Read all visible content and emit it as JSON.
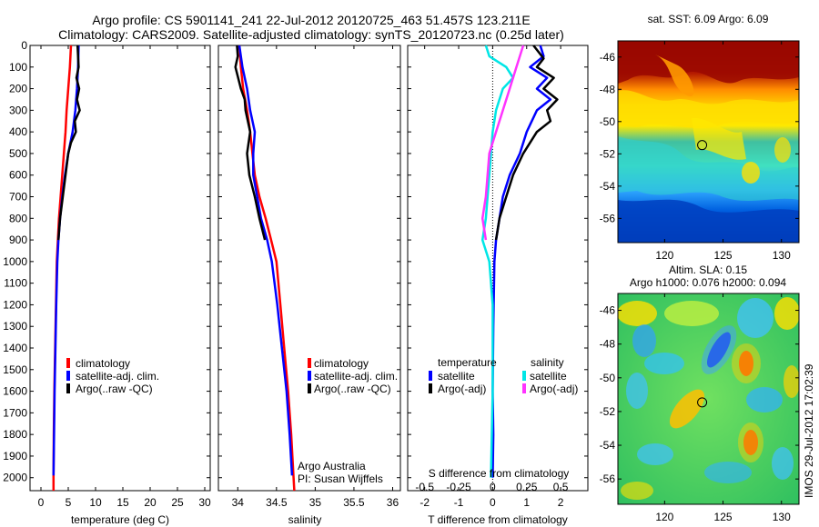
{
  "header": {
    "title_line1": "Argo profile: CS 5901141_241 22-Jul-2012 20120725_463 51.457S 123.211E",
    "title_line2": "Climatology: CARS2009. Satellite-adjusted climatology: synTS_20120723.nc (0.25d later)"
  },
  "colors": {
    "climatology": "#ff0000",
    "satellite": "#0000ff",
    "argo": "#000000",
    "sal_satellite": "#00e6e6",
    "sal_argo": "#ff33ff"
  },
  "depth_axis": {
    "ticks": [
      0,
      100,
      200,
      300,
      400,
      500,
      600,
      700,
      800,
      900,
      1000,
      1100,
      1200,
      1300,
      1400,
      1500,
      1600,
      1700,
      1800,
      1900,
      2000
    ],
    "range": [
      0,
      2060
    ]
  },
  "chart_data": [
    {
      "id": "temperature",
      "type": "line",
      "xlabel": "temperature (deg C)",
      "xlim": [
        -2,
        31
      ],
      "xticks": [
        0,
        5,
        10,
        15,
        20,
        25,
        30
      ],
      "legend": [
        "climatology",
        "satellite-adj. clim.",
        "Argo(..raw -QC)"
      ],
      "series": [
        {
          "name": "climatology",
          "color": "#ff0000",
          "points": [
            [
              5.5,
              0
            ],
            [
              5.3,
              100
            ],
            [
              5.0,
              200
            ],
            [
              4.7,
              300
            ],
            [
              4.5,
              400
            ],
            [
              4.2,
              500
            ],
            [
              3.9,
              600
            ],
            [
              3.6,
              700
            ],
            [
              3.3,
              800
            ],
            [
              3.1,
              900
            ],
            [
              2.9,
              1000
            ],
            [
              2.75,
              1200
            ],
            [
              2.6,
              1400
            ],
            [
              2.45,
              1600
            ],
            [
              2.35,
              1800
            ],
            [
              2.3,
              2000
            ],
            [
              2.3,
              2060
            ]
          ]
        },
        {
          "name": "satellite-adj. clim.",
          "color": "#0000ff",
          "points": [
            [
              6.9,
              0
            ],
            [
              6.8,
              100
            ],
            [
              6.6,
              200
            ],
            [
              6.3,
              300
            ],
            [
              5.8,
              400
            ],
            [
              5.0,
              500
            ],
            [
              4.4,
              600
            ],
            [
              3.9,
              700
            ],
            [
              3.5,
              800
            ],
            [
              3.2,
              900
            ],
            [
              3.0,
              1000
            ],
            [
              2.8,
              1200
            ],
            [
              2.65,
              1400
            ],
            [
              2.5,
              1600
            ],
            [
              2.4,
              1800
            ],
            [
              2.3,
              1990
            ]
          ]
        },
        {
          "name": "Argo(..raw -QC)",
          "color": "#000000",
          "points": [
            [
              6.7,
              0
            ],
            [
              6.9,
              100
            ],
            [
              6.5,
              150
            ],
            [
              7.0,
              200
            ],
            [
              6.6,
              250
            ],
            [
              7.1,
              300
            ],
            [
              6.2,
              350
            ],
            [
              6.4,
              400
            ],
            [
              5.5,
              450
            ],
            [
              5.0,
              500
            ],
            [
              4.5,
              600
            ],
            [
              4.0,
              700
            ],
            [
              3.5,
              800
            ],
            [
              3.2,
              900
            ]
          ]
        }
      ]
    },
    {
      "id": "salinity",
      "type": "line",
      "xlabel": "salinity",
      "xlim": [
        33.75,
        36.1
      ],
      "xticks": [
        34,
        34.5,
        35,
        35.5,
        36
      ],
      "legend": [
        "climatology",
        "satellite-adj. clim.",
        "Argo(..raw -QC)"
      ],
      "annotation": [
        "Argo Australia",
        "PI: Susan Wijffels"
      ],
      "series": [
        {
          "name": "climatology",
          "color": "#ff0000",
          "points": [
            [
              34.02,
              0
            ],
            [
              34.04,
              100
            ],
            [
              34.07,
              200
            ],
            [
              34.12,
              300
            ],
            [
              34.16,
              400
            ],
            [
              34.19,
              500
            ],
            [
              34.22,
              600
            ],
            [
              34.28,
              700
            ],
            [
              34.36,
              800
            ],
            [
              34.43,
              900
            ],
            [
              34.5,
              1000
            ],
            [
              34.55,
              1200
            ],
            [
              34.6,
              1400
            ],
            [
              34.65,
              1600
            ],
            [
              34.69,
              1800
            ],
            [
              34.72,
              2000
            ],
            [
              34.73,
              2060
            ]
          ]
        },
        {
          "name": "satellite-adj. clim.",
          "color": "#0000ff",
          "points": [
            [
              34.02,
              0
            ],
            [
              34.06,
              100
            ],
            [
              34.12,
              200
            ],
            [
              34.16,
              300
            ],
            [
              34.22,
              400
            ],
            [
              34.2,
              500
            ],
            [
              34.2,
              600
            ],
            [
              34.25,
              700
            ],
            [
              34.3,
              800
            ],
            [
              34.38,
              900
            ],
            [
              34.44,
              1000
            ],
            [
              34.51,
              1200
            ],
            [
              34.57,
              1400
            ],
            [
              34.63,
              1600
            ],
            [
              34.67,
              1800
            ],
            [
              34.7,
              1990
            ]
          ]
        },
        {
          "name": "Argo(..raw -QC)",
          "color": "#000000",
          "points": [
            [
              33.99,
              0
            ],
            [
              34.0,
              50
            ],
            [
              33.97,
              100
            ],
            [
              34.04,
              200
            ],
            [
              34.09,
              250
            ],
            [
              34.1,
              300
            ],
            [
              34.16,
              400
            ],
            [
              34.12,
              500
            ],
            [
              34.15,
              600
            ],
            [
              34.22,
              700
            ],
            [
              34.28,
              800
            ],
            [
              34.35,
              900
            ]
          ]
        }
      ]
    },
    {
      "id": "difference",
      "type": "line",
      "xlabel": "T difference from climatology",
      "top_label": "S difference from climatology",
      "xlim": [
        -2.5,
        2.8
      ],
      "xticks": [
        -2,
        -1,
        0,
        1,
        2
      ],
      "top_ticks": [
        "-0.5",
        "-0.25",
        "0",
        "0.25",
        "0.5"
      ],
      "top_tick_positions_T": [
        -2,
        -1,
        0,
        1,
        2
      ],
      "legend_temperature_title": "temperature",
      "legend_salinity_title": "salinity",
      "legend": [
        "satellite",
        "Argo(-adj)",
        "satellite",
        "Argo(-adj)"
      ],
      "series": [
        {
          "name": "temperature satellite",
          "color": "#0000ff",
          "points": [
            [
              1.4,
              0
            ],
            [
              1.5,
              50
            ],
            [
              1.1,
              100
            ],
            [
              1.6,
              150
            ],
            [
              1.3,
              200
            ],
            [
              1.7,
              250
            ],
            [
              1.3,
              300
            ],
            [
              1.0,
              400
            ],
            [
              0.8,
              500
            ],
            [
              0.5,
              600
            ],
            [
              0.3,
              700
            ],
            [
              0.2,
              800
            ],
            [
              0.1,
              900
            ],
            [
              0.05,
              1000
            ],
            [
              0.02,
              1300
            ],
            [
              0.0,
              1600
            ],
            [
              0.02,
              1800
            ],
            [
              0.0,
              2000
            ]
          ]
        },
        {
          "name": "temperature Argo(-adj)",
          "color": "#000000",
          "points": [
            [
              1.2,
              0
            ],
            [
              1.5,
              60
            ],
            [
              1.3,
              100
            ],
            [
              1.8,
              150
            ],
            [
              1.5,
              200
            ],
            [
              1.9,
              250
            ],
            [
              1.6,
              300
            ],
            [
              1.7,
              350
            ],
            [
              1.3,
              400
            ],
            [
              0.9,
              500
            ],
            [
              0.6,
              600
            ],
            [
              0.4,
              700
            ],
            [
              0.2,
              800
            ],
            [
              0.1,
              900
            ]
          ]
        },
        {
          "name": "salinity satellite",
          "color": "#00e6e6",
          "points": [
            [
              -0.2,
              0
            ],
            [
              -0.1,
              50
            ],
            [
              0.4,
              100
            ],
            [
              0.6,
              150
            ],
            [
              0.3,
              200
            ],
            [
              0.1,
              300
            ],
            [
              0.0,
              400
            ],
            [
              -0.1,
              600
            ],
            [
              -0.2,
              800
            ],
            [
              -0.3,
              900
            ],
            [
              -0.1,
              1000
            ],
            [
              0.0,
              1200
            ],
            [
              0.0,
              1600
            ],
            [
              -0.05,
              2000
            ]
          ]
        },
        {
          "name": "salinity Argo(-adj)",
          "color": "#ff33ff",
          "points": [
            [
              0.9,
              0
            ],
            [
              0.7,
              100
            ],
            [
              0.5,
              200
            ],
            [
              0.3,
              300
            ],
            [
              0.1,
              400
            ],
            [
              -0.1,
              500
            ],
            [
              -0.2,
              700
            ],
            [
              -0.3,
              800
            ],
            [
              -0.2,
              900
            ]
          ]
        }
      ]
    }
  ],
  "maps": {
    "sst_title": "sat. SST: 6.09  Argo: 6.09",
    "sla_title_line1": "Altim. SLA: 0.15",
    "sla_title_line2": "Argo h1000: 0.076 h2000: 0.094",
    "lat_ticks": [
      "-46",
      "-48",
      "-50",
      "-52",
      "-54",
      "-56"
    ],
    "lon_ticks": [
      "120",
      "125",
      "130"
    ],
    "lat_range": [
      -57.5,
      -45.0
    ],
    "lon_range": [
      116.0,
      131.5
    ],
    "lat_tick_values": [
      -46,
      -48,
      -50,
      -52,
      -54,
      -56
    ],
    "lon_tick_values": [
      120,
      125,
      130
    ],
    "float_lon": 123.211,
    "float_lat": -51.457
  },
  "footer": {
    "timestamp": "IMOS 29-Jul-2012 17:02:39"
  }
}
